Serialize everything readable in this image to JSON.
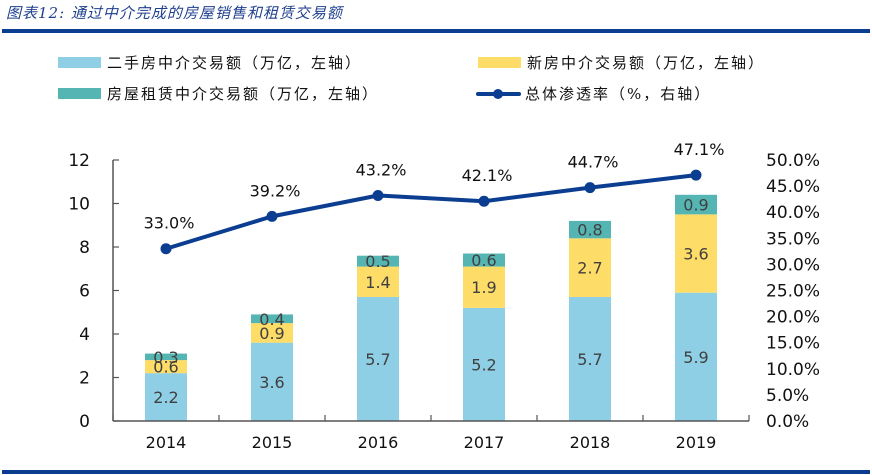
{
  "figure": {
    "title": "图表12: 通过中介完成的房屋销售和租赁交易额"
  },
  "legend": [
    {
      "label": "二手房中介交易额（万亿，左轴）",
      "kind": "bar",
      "color": "#8ecfe6",
      "icon": "legend-swatch-second-hand"
    },
    {
      "label": "新房中介交易额（万亿，左轴）",
      "kind": "bar",
      "color": "#fddc68",
      "icon": "legend-swatch-new-house"
    },
    {
      "label": "房屋租赁中介交易额（万亿，左轴）",
      "kind": "bar",
      "color": "#55b5b3",
      "icon": "legend-swatch-rental"
    },
    {
      "label": "总体渗透率（%，右轴）",
      "kind": "line",
      "color": "#0b3d91",
      "icon": "legend-line-marker"
    }
  ],
  "chart_data": {
    "type": "bar",
    "stacked": true,
    "title": "图表12: 通过中介完成的房屋销售和租赁交易额",
    "categories": [
      "2014",
      "2015",
      "2016",
      "2017",
      "2018",
      "2019"
    ],
    "series": [
      {
        "name": "二手房中介交易额（万亿，左轴）",
        "type": "bar",
        "axis": "left",
        "color": "#8ecfe6",
        "values": [
          2.2,
          3.6,
          5.7,
          5.2,
          5.7,
          5.9
        ],
        "labels": [
          "2.2",
          "3.6",
          "5.7",
          "5.2",
          "5.7",
          "5.9"
        ]
      },
      {
        "name": "新房中介交易额（万亿，左轴）",
        "type": "bar",
        "axis": "left",
        "color": "#fddc68",
        "values": [
          0.6,
          0.9,
          1.4,
          1.9,
          2.7,
          3.6
        ],
        "labels": [
          "0.6",
          "0.9",
          "1.4",
          "1.9",
          "2.7",
          "3.6"
        ]
      },
      {
        "name": "房屋租赁中介交易额（万亿，左轴）",
        "type": "bar",
        "axis": "left",
        "color": "#55b5b3",
        "values": [
          0.3,
          0.4,
          0.5,
          0.6,
          0.8,
          0.9
        ],
        "labels": [
          "0.3",
          "0.4",
          "0.5",
          "0.6",
          "0.8",
          "0.9"
        ]
      },
      {
        "name": "总体渗透率（%，右轴）",
        "type": "line",
        "axis": "right",
        "color": "#0b3d91",
        "values": [
          33.0,
          39.2,
          43.2,
          42.1,
          44.7,
          47.1
        ],
        "labels": [
          "33.0%",
          "39.2%",
          "43.2%",
          "42.1%",
          "44.7%",
          "47.1%"
        ]
      }
    ],
    "xlabel": "",
    "ylabel": "",
    "ylim": [
      0,
      12
    ],
    "yticks": [
      "0",
      "2",
      "4",
      "6",
      "8",
      "10",
      "12"
    ],
    "y2lim": [
      0,
      50
    ],
    "y2ticks": [
      "0.0%",
      "5.0%",
      "10.0%",
      "15.0%",
      "20.0%",
      "25.0%",
      "30.0%",
      "35.0%",
      "40.0%",
      "45.0%",
      "50.0%"
    ],
    "grid": false,
    "legend_position": "top"
  }
}
